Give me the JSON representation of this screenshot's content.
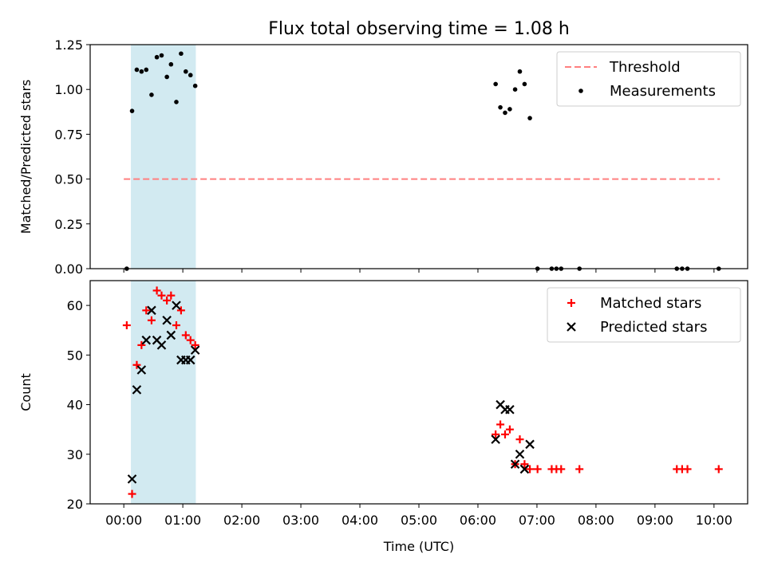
{
  "chart_data": {
    "type": "scatter",
    "title": "Flux total observing time = 1.08 h",
    "xlabel": "Time (UTC)",
    "x_unit": "hours",
    "xlim": [
      -0.57,
      10.57
    ],
    "x_ticks": [
      0,
      1,
      2,
      3,
      4,
      5,
      6,
      7,
      8,
      9,
      10
    ],
    "x_tick_labels": [
      "00:00",
      "01:00",
      "02:00",
      "03:00",
      "04:00",
      "05:00",
      "06:00",
      "07:00",
      "08:00",
      "09:00",
      "10:00"
    ],
    "shaded_interval": {
      "x": [
        0.12,
        1.22
      ],
      "color": "#add8e6"
    },
    "panels": [
      {
        "name": "ratio",
        "ylabel": "Matched/Predicted stars",
        "ylim": [
          0.0,
          1.25
        ],
        "y_ticks": [
          0.0,
          0.25,
          0.5,
          0.75,
          1.0,
          1.25
        ],
        "y_tick_labels": [
          "0.00",
          "0.25",
          "0.50",
          "0.75",
          "1.00",
          "1.25"
        ],
        "legend": {
          "position": "top-right",
          "entries": [
            "Threshold",
            "Measurements"
          ]
        },
        "threshold": {
          "name": "Threshold",
          "y": 0.5,
          "x": [
            0.0,
            10.1
          ],
          "color": "#ff7f7f",
          "style": "dashed"
        },
        "series": [
          {
            "name": "Measurements",
            "marker": "dot",
            "color": "#000000",
            "x": [
              0.05,
              0.14,
              0.22,
              0.3,
              0.38,
              0.47,
              0.56,
              0.64,
              0.73,
              0.8,
              0.89,
              0.97,
              1.05,
              1.13,
              1.21,
              6.3,
              6.38,
              6.46,
              6.54,
              6.63,
              6.71,
              6.79,
              6.88,
              7.01,
              7.25,
              7.33,
              7.41,
              7.72,
              9.37,
              9.46,
              9.55,
              10.08
            ],
            "y": [
              0.0,
              0.88,
              1.11,
              1.1,
              1.11,
              0.97,
              1.18,
              1.19,
              1.07,
              1.14,
              0.93,
              1.2,
              1.1,
              1.08,
              1.02,
              1.03,
              0.9,
              0.87,
              0.89,
              1.0,
              1.1,
              1.03,
              0.84,
              0.0,
              0.0,
              0.0,
              0.0,
              0.0,
              0.0,
              0.0,
              0.0,
              0.0
            ]
          }
        ]
      },
      {
        "name": "count",
        "ylabel": "Count",
        "ylim": [
          20,
          65
        ],
        "y_ticks": [
          20,
          30,
          40,
          50,
          60
        ],
        "y_tick_labels": [
          "20",
          "30",
          "40",
          "50",
          "60"
        ],
        "legend": {
          "position": "top-right",
          "entries": [
            "Matched stars",
            "Predicted stars"
          ]
        },
        "series": [
          {
            "name": "Matched stars",
            "marker": "plus",
            "color": "#ff0000",
            "x": [
              0.05,
              0.14,
              0.22,
              0.3,
              0.38,
              0.47,
              0.56,
              0.64,
              0.73,
              0.8,
              0.89,
              0.97,
              1.05,
              1.13,
              1.21,
              6.3,
              6.38,
              6.46,
              6.54,
              6.63,
              6.71,
              6.79,
              6.88,
              7.01,
              7.25,
              7.33,
              7.41,
              7.72,
              9.37,
              9.46,
              9.55,
              10.08
            ],
            "y": [
              56,
              22,
              48,
              52,
              59,
              57,
              63,
              62,
              61,
              62,
              56,
              59,
              54,
              53,
              52,
              34,
              36,
              34,
              35,
              28,
              33,
              28,
              27,
              27,
              27,
              27,
              27,
              27,
              27,
              27,
              27,
              27
            ]
          },
          {
            "name": "Predicted stars",
            "marker": "x",
            "color": "#000000",
            "x": [
              0.14,
              0.22,
              0.3,
              0.38,
              0.47,
              0.56,
              0.64,
              0.73,
              0.8,
              0.89,
              0.97,
              1.05,
              1.13,
              1.21,
              6.3,
              6.38,
              6.46,
              6.54,
              6.63,
              6.71,
              6.79,
              6.88
            ],
            "y": [
              25,
              43,
              47,
              53,
              59,
              53,
              52,
              57,
              54,
              60,
              49,
              49,
              49,
              51,
              33,
              40,
              39,
              39,
              28,
              30,
              27,
              32
            ]
          }
        ]
      }
    ]
  }
}
